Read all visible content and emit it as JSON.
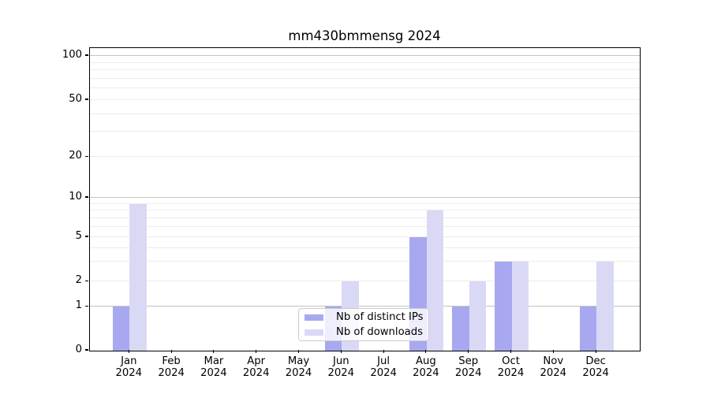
{
  "chart_data": {
    "type": "bar",
    "title": "mm430bmmensg 2024",
    "categories": [
      "Jan",
      "Feb",
      "Mar",
      "Apr",
      "May",
      "Jun",
      "Jul",
      "Aug",
      "Sep",
      "Oct",
      "Nov",
      "Dec"
    ],
    "year_label": "2024",
    "series": [
      {
        "name": "Nb of distinct IPs",
        "color": "#a8a8f0",
        "values": [
          1,
          0,
          0,
          0,
          0,
          1,
          0,
          5,
          1,
          3,
          0,
          1
        ]
      },
      {
        "name": "Nb of downloads",
        "color": "#d9d9f6",
        "values": [
          9,
          0,
          0,
          0,
          0,
          2,
          0,
          8,
          2,
          3,
          0,
          3
        ]
      }
    ],
    "y_ticks": [
      0,
      1,
      2,
      5,
      10,
      20,
      50,
      100
    ],
    "y_minor_gridlines": [
      2,
      3,
      4,
      5,
      6,
      7,
      8,
      9,
      20,
      30,
      40,
      50,
      60,
      70,
      80,
      90
    ],
    "y_major_gridlines": [
      1,
      10,
      100
    ],
    "ylim": [
      0,
      113
    ],
    "yscale": "symlog",
    "xlabel": "",
    "ylabel": "",
    "grid": "horizontal",
    "legend_position": "lower center",
    "colors": {
      "major_grid": "#c3c3c3",
      "minor_grid": "#ececec",
      "axis": "#000000",
      "legend_border": "#cccccc"
    }
  }
}
